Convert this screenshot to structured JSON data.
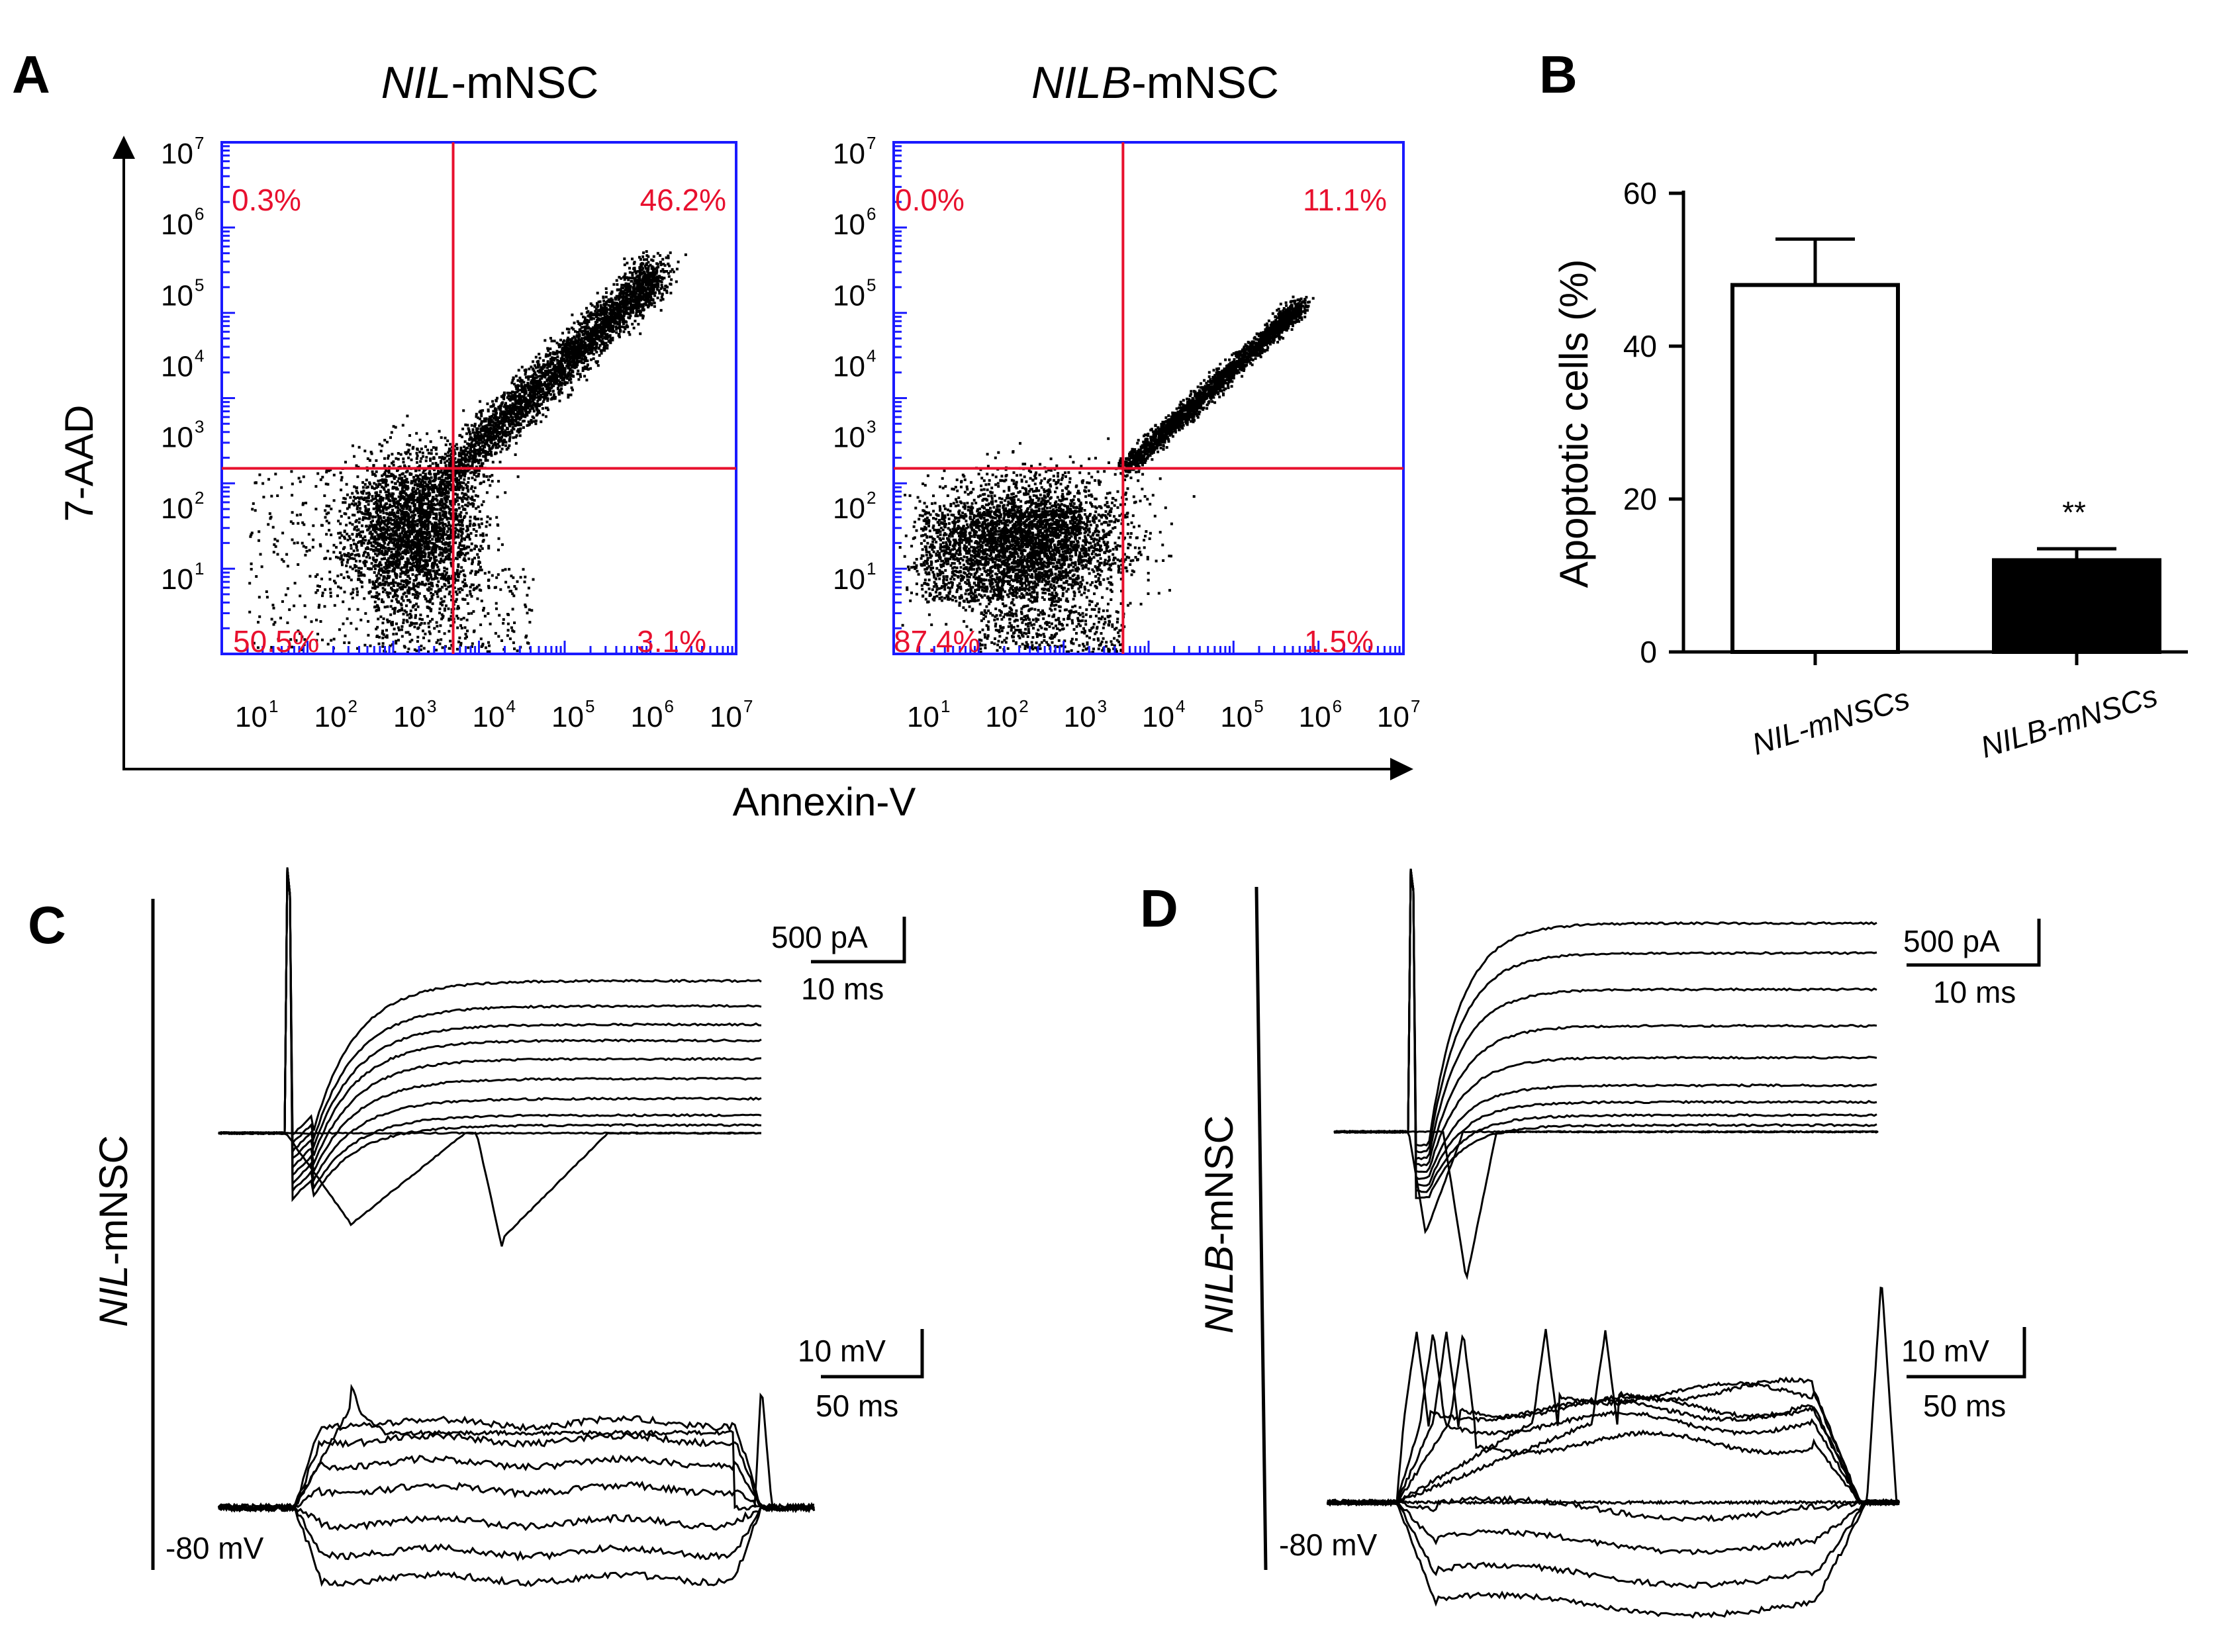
{
  "panels": {
    "A": {
      "label": "A",
      "axis_x_label": "Annexin-V",
      "axis_y_label": "7-AAD"
    },
    "B": {
      "label": "B"
    },
    "C": {
      "label": "C",
      "cell_italic": "NIL",
      "cell_rest": "-mNSC"
    },
    "D": {
      "label": "D",
      "cell_italic": "NILB",
      "cell_rest": "-mNSC"
    }
  },
  "colors": {
    "quadrant": "#e8102e",
    "frame": "#1a1aff",
    "ink": "#000000"
  },
  "chart_data": [
    {
      "type": "scatter",
      "title_italic": "NIL",
      "title_rest": "-mNSC",
      "xlabel": "Annexin-V",
      "ylabel": "7-AAD",
      "log_scale": true,
      "xlim": [
        10,
        10000000
      ],
      "ylim": [
        10,
        10000000
      ],
      "x_ticks": [
        {
          "base": "10",
          "exp": "1"
        },
        {
          "base": "10",
          "exp": "2"
        },
        {
          "base": "10",
          "exp": "3"
        },
        {
          "base": "10",
          "exp": "4"
        },
        {
          "base": "10",
          "exp": "5"
        },
        {
          "base": "10",
          "exp": "6"
        },
        {
          "base": "10",
          "exp": "7"
        }
      ],
      "y_ticks": [
        {
          "base": "10",
          "exp": "1"
        },
        {
          "base": "10",
          "exp": "2"
        },
        {
          "base": "10",
          "exp": "3"
        },
        {
          "base": "10",
          "exp": "4"
        },
        {
          "base": "10",
          "exp": "5"
        },
        {
          "base": "10",
          "exp": "6"
        },
        {
          "base": "10",
          "exp": "7"
        }
      ],
      "gate": {
        "x": 5000,
        "y": 1500
      },
      "quadrants": {
        "upper_left": "0.3%",
        "upper_right": "46.2%",
        "lower_left": "50.5%",
        "lower_right": "3.1%"
      }
    },
    {
      "type": "scatter",
      "title_italic": "NILB",
      "title_rest": "-mNSC",
      "xlabel": "Annexin-V",
      "ylabel": "7-AAD",
      "log_scale": true,
      "xlim": [
        10,
        10000000
      ],
      "ylim": [
        10,
        10000000
      ],
      "x_ticks": [
        {
          "base": "10",
          "exp": "1"
        },
        {
          "base": "10",
          "exp": "2"
        },
        {
          "base": "10",
          "exp": "3"
        },
        {
          "base": "10",
          "exp": "4"
        },
        {
          "base": "10",
          "exp": "5"
        },
        {
          "base": "10",
          "exp": "6"
        },
        {
          "base": "10",
          "exp": "7"
        }
      ],
      "y_ticks": [
        {
          "base": "10",
          "exp": "1"
        },
        {
          "base": "10",
          "exp": "2"
        },
        {
          "base": "10",
          "exp": "3"
        },
        {
          "base": "10",
          "exp": "4"
        },
        {
          "base": "10",
          "exp": "5"
        },
        {
          "base": "10",
          "exp": "6"
        },
        {
          "base": "10",
          "exp": "7"
        }
      ],
      "gate": {
        "x": 5000,
        "y": 1500
      },
      "quadrants": {
        "upper_left": "0.0%",
        "upper_right": "11.1%",
        "lower_left": "87.4%",
        "lower_right": "1.5%"
      }
    },
    {
      "type": "bar",
      "categories": [
        {
          "italic": "NIL",
          "rest": "-mNSCs"
        },
        {
          "italic": "NILB",
          "rest": "-mNSCs"
        }
      ],
      "values": [
        48,
        12
      ],
      "errors": [
        6,
        1.5
      ],
      "fills": [
        "#ffffff",
        "#000000"
      ],
      "significance": [
        "",
        "**"
      ],
      "ylabel": "Apoptotic cells (%)",
      "ylim": [
        0,
        60
      ],
      "yticks": [
        "0",
        "20",
        "40",
        "60"
      ]
    },
    {
      "type": "line",
      "panel": "C",
      "current_scale": {
        "amp": "500 pA",
        "time": "10 ms"
      },
      "voltage_scale": {
        "amp": "10 mV",
        "time": "50 ms"
      },
      "rest_label": "-80 mV"
    },
    {
      "type": "line",
      "panel": "D",
      "current_scale": {
        "amp": "500 pA",
        "time": "10 ms"
      },
      "voltage_scale": {
        "amp": "10 mV",
        "time": "50 ms"
      },
      "rest_label": "-80 mV"
    }
  ]
}
